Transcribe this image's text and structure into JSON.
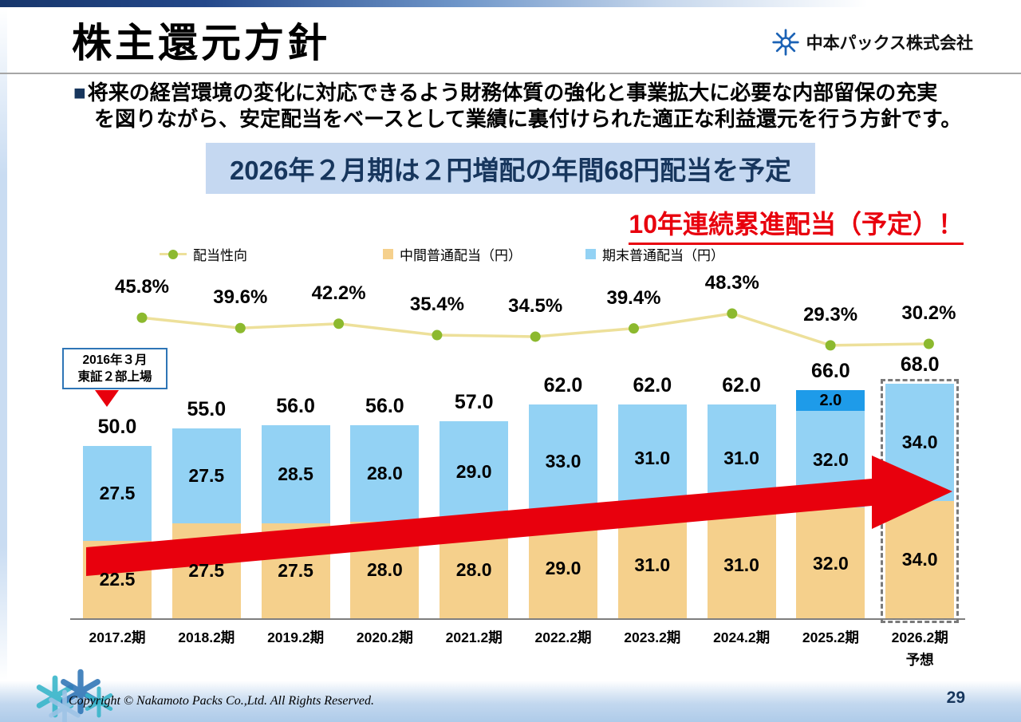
{
  "slide": {
    "title": "株主還元方針",
    "company": "中本パックス株式会社",
    "bullet": "■",
    "policy_line1": "将来の経営環境の変化に対応できるよう財務体質の強化と事業拡大に必要な内部留保の充実",
    "policy_line2": "を図りながら、安定配当をベースとして業績に裏付けられた適正な利益還元を行う方針です。",
    "banner": "2026年２月期は２円増配の年間68円配当を予定",
    "red_note": "10年連続累進配当（予定）！",
    "callout_line1": "2016年３月",
    "callout_line2": "東証２部上場",
    "forecast_note": "予想",
    "copyright": "Copyright © Nakamoto Packs Co.,Ltd. All Rights Reserved.",
    "page_number": "29"
  },
  "chart_data": {
    "type": "bar",
    "categories": [
      "2017.2期",
      "2018.2期",
      "2019.2期",
      "2020.2期",
      "2021.2期",
      "2022.2期",
      "2023.2期",
      "2024.2期",
      "2025.2期",
      "2026.2期"
    ],
    "series": [
      {
        "name": "中間普通配当（円）",
        "values": [
          22.5,
          27.5,
          27.5,
          28.0,
          28.0,
          29.0,
          31.0,
          31.0,
          32.0,
          34.0
        ]
      },
      {
        "name": "期末普通配当（円）",
        "values": [
          27.5,
          27.5,
          28.5,
          28.0,
          29.0,
          33.0,
          31.0,
          31.0,
          32.0,
          34.0
        ]
      },
      {
        "name": "",
        "values": [
          0,
          0,
          0,
          0,
          0,
          0,
          0,
          0,
          2.0,
          0
        ]
      }
    ],
    "totals": [
      50.0,
      55.0,
      56.0,
      56.0,
      57.0,
      62.0,
      62.0,
      62.0,
      66.0,
      68.0
    ],
    "payout_name": "配当性向",
    "payout_ratio_percent": [
      45.8,
      39.6,
      42.2,
      35.4,
      34.5,
      39.4,
      48.3,
      29.3,
      30.2
    ],
    "forecast_index": 9,
    "ylim": [
      0,
      68
    ],
    "legend_position": "top",
    "grid": false,
    "colors": {
      "interim_bar": "#F5D08C",
      "yearend_bar": "#93D2F4",
      "special_bar": "#1E9BE9",
      "payout_line": "#EDE09A",
      "payout_dot": "#8CB92E",
      "arrow_red": "#E8000D",
      "banner_bg": "#C5D8F1",
      "banner_text": "#17365D"
    }
  }
}
